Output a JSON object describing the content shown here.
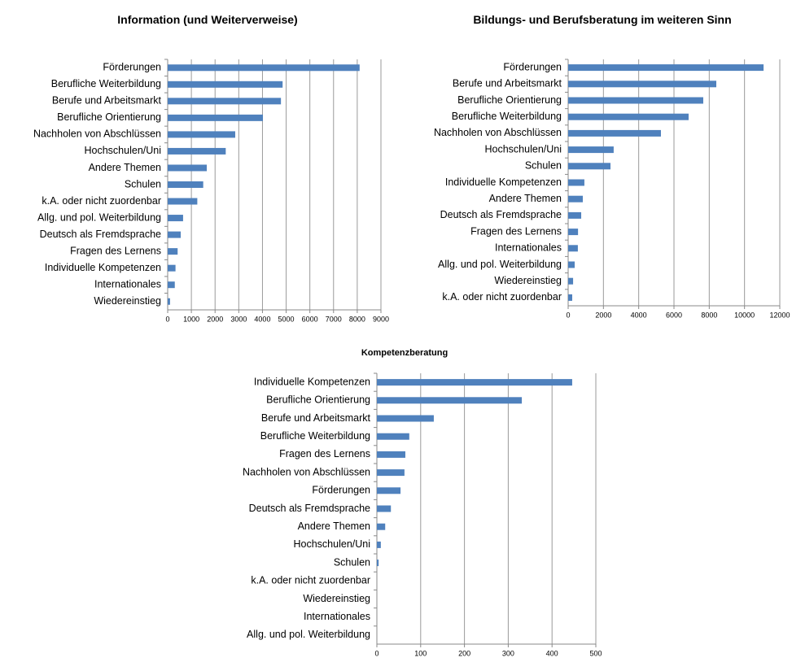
{
  "chart_data": [
    {
      "type": "bar",
      "orientation": "horizontal",
      "title": "Information (und Weiterverweise)",
      "color": "#4f81bd",
      "grid": true,
      "categories": [
        "Förderungen",
        "Berufliche Weiterbildung",
        "Berufe und Arbeitsmarkt",
        "Berufliche Orientierung",
        "Nachholen von Abschlüssen",
        "Hochschulen/Uni",
        "Andere Themen",
        "Schulen",
        "k.A. oder nicht zuordenbar",
        "Allg. und pol. Weiterbildung",
        "Deutsch als Fremdsprache",
        "Fragen des Lernens",
        "Individuelle Kompetenzen",
        "Internationales",
        "Wiedereinstieg"
      ],
      "values": [
        8100,
        4850,
        4780,
        4020,
        2850,
        2450,
        1650,
        1500,
        1250,
        650,
        550,
        420,
        330,
        300,
        100
      ],
      "xlim": [
        0,
        9000
      ],
      "xticks": [
        0,
        1000,
        2000,
        3000,
        4000,
        5000,
        6000,
        7000,
        8000,
        9000
      ]
    },
    {
      "type": "bar",
      "orientation": "horizontal",
      "title": "Bildungs- und Berufsberatung im weiteren Sinn",
      "color": "#4f81bd",
      "grid": true,
      "categories": [
        "Förderungen",
        "Berufe und Arbeitsmarkt",
        "Berufliche Orientierung",
        "Berufliche Weiterbildung",
        "Nachholen von Abschlüssen",
        "Hochschulen/Uni",
        "Schulen",
        "Individuelle Kompetenzen",
        "Andere Themen",
        "Deutsch als Fremdsprache",
        "Fragen des Lernens",
        "Internationales",
        "Allg. und pol. Weiterbildung",
        "Wiedereinstieg",
        "k.A. oder nicht zuordenbar"
      ],
      "values": [
        11080,
        8400,
        7660,
        6830,
        5260,
        2580,
        2400,
        920,
        830,
        740,
        560,
        550,
        370,
        280,
        230
      ],
      "xlim": [
        0,
        12000
      ],
      "xticks": [
        0,
        2000,
        4000,
        6000,
        8000,
        10000,
        12000
      ]
    },
    {
      "type": "bar",
      "orientation": "horizontal",
      "title": "Kompetenzberatung",
      "color": "#4f81bd",
      "grid": true,
      "categories": [
        "Individuelle Kompetenzen",
        "Berufliche Orientierung",
        "Berufe und Arbeitsmarkt",
        "Berufliche Weiterbildung",
        "Fragen des Lernens",
        "Nachholen von Abschlüssen",
        "Förderungen",
        "Deutsch als Fremdsprache",
        "Andere Themen",
        "Hochschulen/Uni",
        "Schulen",
        "k.A. oder nicht zuordenbar",
        "Wiedereinstieg",
        "Internationales",
        "Allg. und pol. Weiterbildung"
      ],
      "values": [
        446,
        331,
        130,
        74,
        65,
        63,
        54,
        32,
        19,
        9,
        4,
        0,
        0,
        0,
        0
      ],
      "xlim": [
        0,
        500
      ],
      "xticks": [
        0,
        100,
        200,
        300,
        400,
        500
      ]
    }
  ]
}
